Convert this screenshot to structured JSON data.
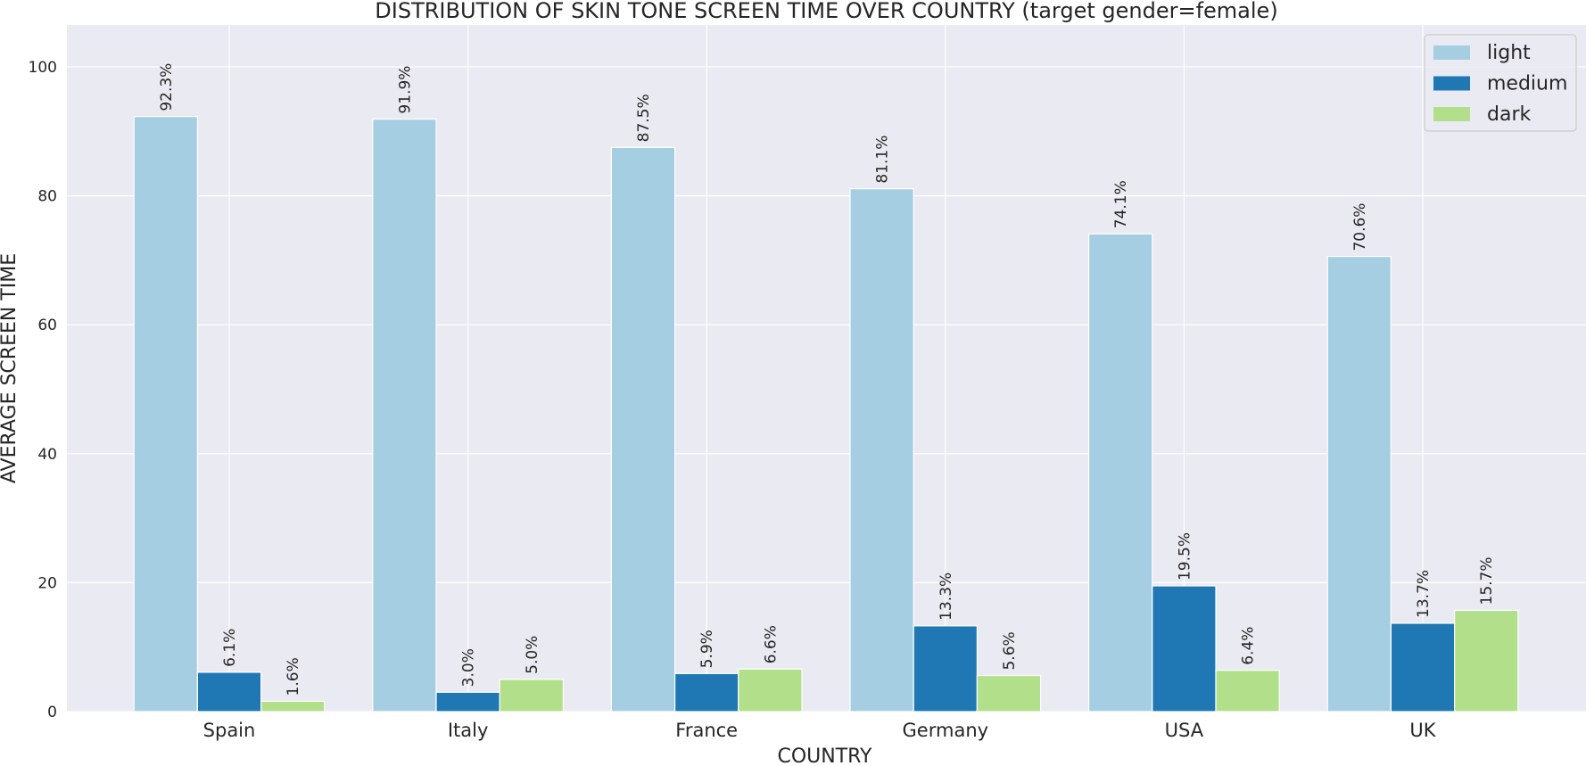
{
  "chart_data": {
    "type": "bar",
    "title": "DISTRIBUTION OF SKIN TONE SCREEN TIME OVER COUNTRY (target gender=female)",
    "xlabel": "COUNTRY",
    "ylabel": "AVERAGE SCREEN TIME",
    "categories": [
      "Spain",
      "Italy",
      "France",
      "Germany",
      "USA",
      "UK"
    ],
    "ylim": [
      0,
      106.5
    ],
    "yticks": [
      0,
      20,
      40,
      60,
      80,
      100
    ],
    "grid": true,
    "legend_position": "top-right",
    "series": [
      {
        "name": "light",
        "color": "#a6cee3",
        "values": [
          92.3,
          91.9,
          87.5,
          81.1,
          74.1,
          70.6
        ],
        "labels": [
          "92.3%",
          "91.9%",
          "87.5%",
          "81.1%",
          "74.1%",
          "70.6%"
        ]
      },
      {
        "name": "medium",
        "color": "#1f78b4",
        "values": [
          6.1,
          3.0,
          5.9,
          13.3,
          19.5,
          13.7
        ],
        "labels": [
          "6.1%",
          "3.0%",
          "5.9%",
          "13.3%",
          "19.5%",
          "13.7%"
        ]
      },
      {
        "name": "dark",
        "color": "#b2df8a",
        "values": [
          1.6,
          5.0,
          6.6,
          5.6,
          6.4,
          15.7
        ],
        "labels": [
          "1.6%",
          "5.0%",
          "6.6%",
          "5.6%",
          "6.4%",
          "15.7%"
        ]
      }
    ]
  }
}
